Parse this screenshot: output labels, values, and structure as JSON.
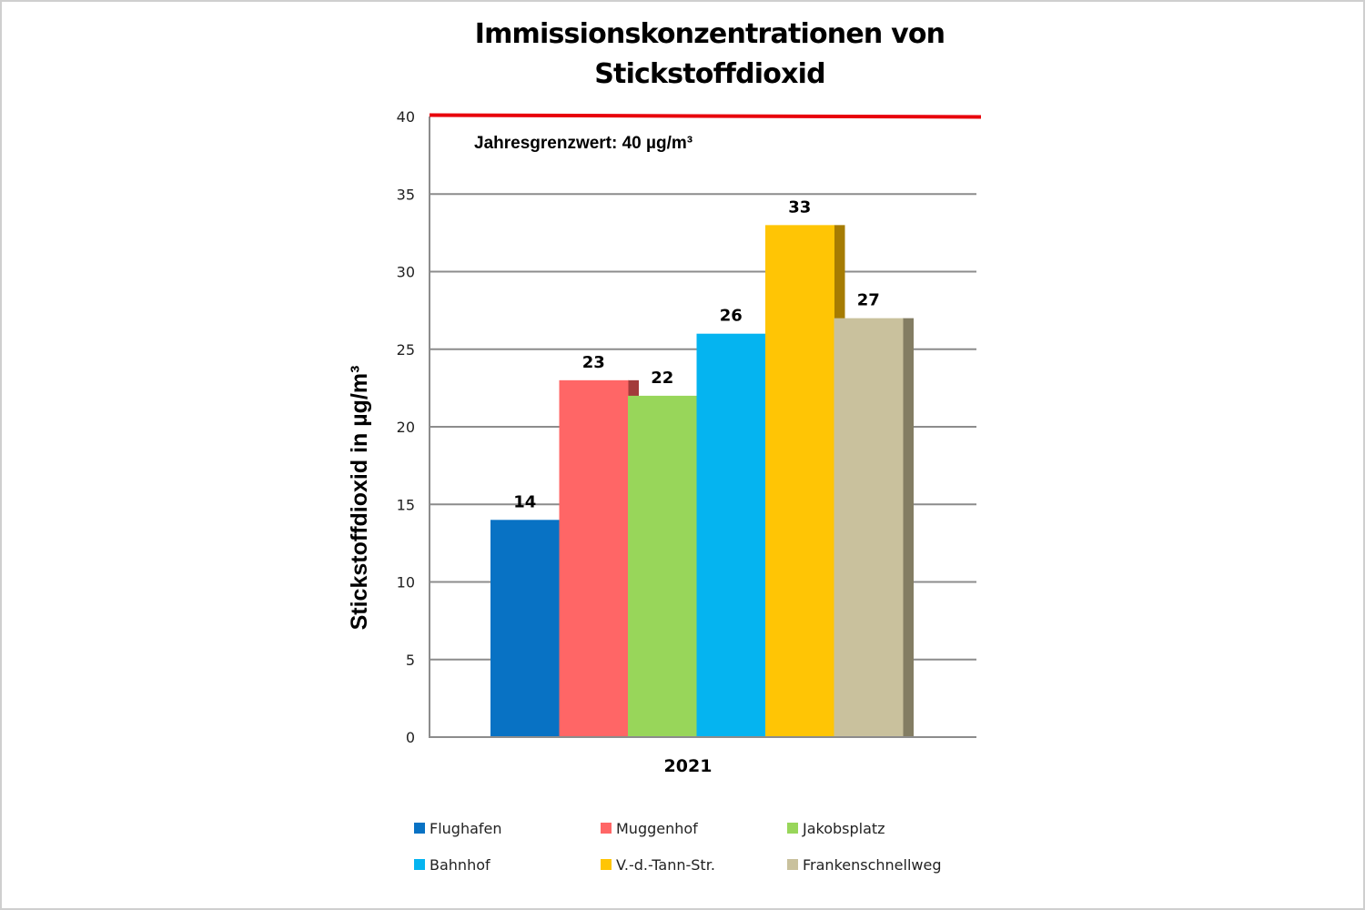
{
  "chart_data": {
    "type": "bar",
    "title": "Immissionskonzentrationen von Stickstoffdioxid",
    "title_lines": [
      "Immissionskonzentrationen von",
      "Stickstoffdioxid"
    ],
    "xlabel": "",
    "ylabel": "Stickstoffdioxid in µg/m³",
    "categories": [
      "2021"
    ],
    "ylim": [
      0,
      40
    ],
    "yticks": [
      0,
      5,
      10,
      15,
      20,
      25,
      30,
      35,
      40
    ],
    "grid": true,
    "legend_position": "bottom",
    "series": [
      {
        "name": "Flughafen",
        "values": [
          14
        ],
        "color": "#0872c4",
        "side_color": "#054f88"
      },
      {
        "name": "Muggenhof",
        "values": [
          23
        ],
        "color": "#ff6666",
        "side_color": "#a33b3b"
      },
      {
        "name": "Jakobsplatz",
        "values": [
          22
        ],
        "color": "#98d65a",
        "side_color": "#5f8f33"
      },
      {
        "name": "Bahnhof",
        "values": [
          26
        ],
        "color": "#05b4f0",
        "side_color": "#037ea8"
      },
      {
        "name": "V.-d.-Tann-Str.",
        "values": [
          33
        ],
        "color": "#ffc505",
        "side_color": "#a67c02"
      },
      {
        "name": "Frankenschnellweg",
        "values": [
          27
        ],
        "color": "#c9c19d",
        "side_color": "#837d63"
      }
    ],
    "reference_line": {
      "value": 40,
      "color": "#e8000b",
      "label": "Jahresgrenzwert: 40 µg/m³"
    }
  }
}
